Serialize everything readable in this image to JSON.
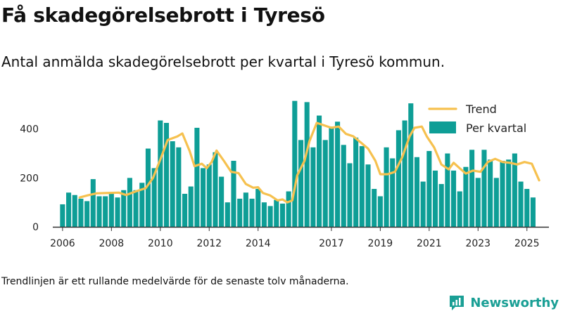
{
  "title": "Få skadegörelsebrott i Tyresö",
  "subtitle": "Antal anmälda skadegörelsebrott per kvartal i Tyresö kommun.",
  "note": "Trendlinjen är ett rullande medelvärde för de senaste tolv månaderna.",
  "brand": {
    "name": "Newsworthy",
    "icon": "newsworthy-logo-icon"
  },
  "colors": {
    "bar": "#0e9e96",
    "trend": "#f6c14f",
    "axis": "#333333",
    "text": "#222222",
    "brand": "#1a9f95"
  },
  "chart_data": {
    "type": "bar",
    "title": "Antal anmälda skadegörelsebrott per kvartal i Tyresö kommun.",
    "xlabel": "",
    "ylabel": "",
    "ylim": [
      0,
      560
    ],
    "yticks": [
      0,
      200,
      400
    ],
    "xlim": [
      2005.6,
      2025.9
    ],
    "xticks": [
      {
        "label": "2006",
        "x": 2006.0
      },
      {
        "label": "2008",
        "x": 2008.0
      },
      {
        "label": "2010",
        "x": 2010.0
      },
      {
        "label": "2012",
        "x": 2012.0
      },
      {
        "label": "2014",
        "x": 2014.0
      },
      {
        "label": "2017",
        "x": 2017.0
      },
      {
        "label": "2019",
        "x": 2019.0
      },
      {
        "label": "2021",
        "x": 2021.0
      },
      {
        "label": "2023",
        "x": 2023.0
      },
      {
        "label": "2025",
        "x": 2025.0
      }
    ],
    "legend_position": "top-right",
    "series": [
      {
        "name": "Per kvartal",
        "type": "bar",
        "start_year": 2006,
        "values": [
          92,
          140,
          130,
          115,
          105,
          195,
          125,
          125,
          140,
          120,
          150,
          200,
          150,
          180,
          320,
          240,
          435,
          425,
          350,
          325,
          135,
          165,
          405,
          240,
          255,
          305,
          205,
          100,
          270,
          115,
          140,
          115,
          155,
          100,
          85,
          110,
          95,
          145,
          515,
          355,
          510,
          325,
          455,
          355,
          410,
          430,
          335,
          260,
          365,
          330,
          255,
          155,
          125,
          325,
          280,
          395,
          435,
          505,
          285,
          185,
          310,
          230,
          175,
          300,
          230,
          145,
          245,
          315,
          200,
          315,
          275,
          200,
          270,
          275,
          300,
          185,
          155,
          120
        ]
      },
      {
        "name": "Trend",
        "type": "line",
        "points": [
          [
            2006.7,
            120
          ],
          [
            2007.0,
            128
          ],
          [
            2007.4,
            137
          ],
          [
            2007.8,
            138
          ],
          [
            2008.3,
            140
          ],
          [
            2008.6,
            130
          ],
          [
            2009.0,
            145
          ],
          [
            2009.4,
            158
          ],
          [
            2009.7,
            200
          ],
          [
            2010.0,
            275
          ],
          [
            2010.3,
            355
          ],
          [
            2010.7,
            370
          ],
          [
            2010.9,
            382
          ],
          [
            2011.2,
            310
          ],
          [
            2011.4,
            248
          ],
          [
            2011.7,
            258
          ],
          [
            2011.9,
            240
          ],
          [
            2012.1,
            265
          ],
          [
            2012.3,
            312
          ],
          [
            2012.6,
            270
          ],
          [
            2012.9,
            225
          ],
          [
            2013.2,
            220
          ],
          [
            2013.5,
            175
          ],
          [
            2013.8,
            160
          ],
          [
            2014.0,
            162
          ],
          [
            2014.2,
            138
          ],
          [
            2014.5,
            128
          ],
          [
            2014.8,
            108
          ],
          [
            2015.0,
            112
          ],
          [
            2015.2,
            100
          ],
          [
            2015.4,
            108
          ],
          [
            2015.6,
            210
          ],
          [
            2015.9,
            270
          ],
          [
            2016.1,
            350
          ],
          [
            2016.4,
            425
          ],
          [
            2016.7,
            415
          ],
          [
            2017.0,
            405
          ],
          [
            2017.3,
            410
          ],
          [
            2017.6,
            380
          ],
          [
            2017.9,
            370
          ],
          [
            2018.2,
            345
          ],
          [
            2018.5,
            320
          ],
          [
            2018.8,
            270
          ],
          [
            2019.0,
            215
          ],
          [
            2019.3,
            215
          ],
          [
            2019.6,
            225
          ],
          [
            2019.9,
            285
          ],
          [
            2020.2,
            370
          ],
          [
            2020.4,
            405
          ],
          [
            2020.7,
            410
          ],
          [
            2020.9,
            370
          ],
          [
            2021.2,
            325
          ],
          [
            2021.5,
            255
          ],
          [
            2021.8,
            235
          ],
          [
            2022.0,
            262
          ],
          [
            2022.3,
            235
          ],
          [
            2022.5,
            218
          ],
          [
            2022.8,
            230
          ],
          [
            2023.1,
            225
          ],
          [
            2023.4,
            265
          ],
          [
            2023.7,
            278
          ],
          [
            2024.0,
            265
          ],
          [
            2024.3,
            262
          ],
          [
            2024.6,
            255
          ],
          [
            2024.9,
            265
          ],
          [
            2025.2,
            258
          ],
          [
            2025.5,
            190
          ]
        ]
      }
    ]
  }
}
